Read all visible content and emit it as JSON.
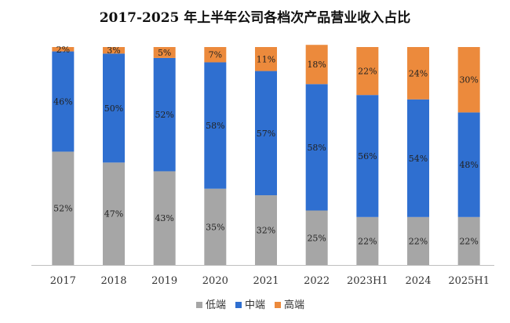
{
  "chart_data": {
    "type": "bar",
    "stacked": true,
    "title": "2017-2025 年上半年公司各档次产品营业收入占比",
    "xlabel": "",
    "ylabel": "",
    "ylim": [
      0,
      100
    ],
    "categories": [
      "2017",
      "2018",
      "2019",
      "2020",
      "2021",
      "2022",
      "2023H1",
      "2024",
      "2025H1"
    ],
    "series": [
      {
        "name": "低端",
        "color": "#a6a6a6",
        "values": [
          52,
          47,
          43,
          35,
          32,
          25,
          22,
          22,
          22
        ],
        "labels": [
          "52%",
          "47%",
          "43%",
          "35%",
          "32%",
          "25%",
          "22%",
          "22%",
          "22%"
        ]
      },
      {
        "name": "中端",
        "color": "#2f6fd0",
        "values": [
          46,
          50,
          52,
          58,
          57,
          58,
          56,
          54,
          48
        ],
        "labels": [
          "46%",
          "50%",
          "52%",
          "58%",
          "57%",
          "58%",
          "56%",
          "54%",
          "48%"
        ]
      },
      {
        "name": "高端",
        "color": "#ec8a3c",
        "values": [
          2,
          3,
          5,
          7,
          11,
          18,
          22,
          24,
          30
        ],
        "labels": [
          "2%",
          "3%",
          "5%",
          "7%",
          "11%",
          "18%",
          "22%",
          "24%",
          "30%"
        ]
      }
    ],
    "legend_position": "bottom"
  }
}
